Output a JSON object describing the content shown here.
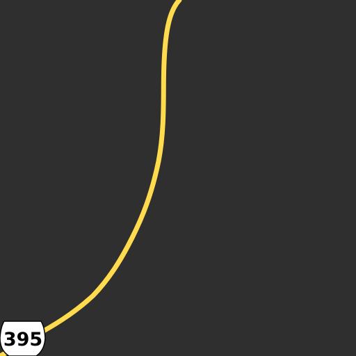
{
  "map": {
    "background_color": "#2f2f2f",
    "road": {
      "name": "US 395",
      "class": "highway",
      "color": "#ffdb4d",
      "route_shield": {
        "label": "395",
        "type": "us-highway-shield",
        "fill": "#ffffff",
        "outline": "#000000",
        "text_color": "#000000"
      }
    }
  }
}
